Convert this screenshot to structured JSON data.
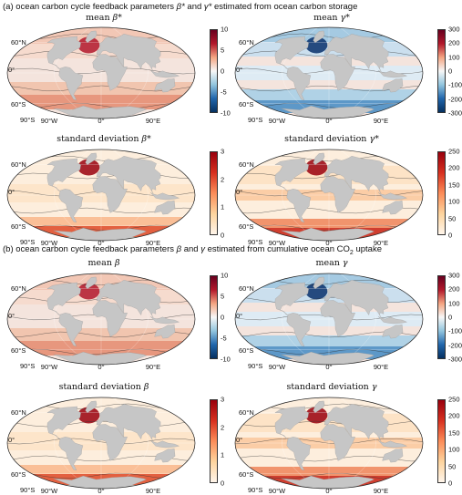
{
  "sections": {
    "a": {
      "title_prefix": "(a) ocean carbon cycle feedback parameters ",
      "beta": "β*",
      "and": " and ",
      "gamma": "γ*",
      "title_suffix": " estimated from ocean carbon storage"
    },
    "b": {
      "title_prefix": "(b) ocean carbon cycle feedback parameters ",
      "beta": "β",
      "and": " and ",
      "gamma": "γ",
      "title_suffix": " estimated from cumulative ocean CO",
      "sub": "2",
      "title_end": " uptake"
    }
  },
  "panels": [
    {
      "id": "a1",
      "title_text": "mean ",
      "symbol": "β*",
      "colormap": "diverging",
      "ticks": [
        "10",
        "5",
        "0",
        "-5",
        "-10"
      ]
    },
    {
      "id": "a2",
      "title_text": "mean ",
      "symbol": "γ*",
      "colormap": "diverging",
      "ticks": [
        "300",
        "200",
        "100",
        "0",
        "-100",
        "-200",
        "-300"
      ]
    },
    {
      "id": "a3",
      "title_text": "standard deviation ",
      "symbol": "β*",
      "colormap": "sequential",
      "ticks": [
        "3",
        "2",
        "1",
        "0"
      ]
    },
    {
      "id": "a4",
      "title_text": "standard deviation ",
      "symbol": "γ*",
      "colormap": "sequential",
      "ticks": [
        "250",
        "200",
        "150",
        "100",
        "50",
        "0"
      ]
    },
    {
      "id": "b1",
      "title_text": "mean ",
      "symbol": "β",
      "colormap": "diverging",
      "ticks": [
        "10",
        "5",
        "0",
        "-5",
        "-10"
      ]
    },
    {
      "id": "b2",
      "title_text": "mean ",
      "symbol": "γ",
      "colormap": "diverging",
      "ticks": [
        "300",
        "200",
        "100",
        "0",
        "-100",
        "-200",
        "-300"
      ]
    },
    {
      "id": "b3",
      "title_text": "standard deviation ",
      "symbol": "β",
      "colormap": "sequential",
      "ticks": [
        "3",
        "2",
        "1",
        "0"
      ]
    },
    {
      "id": "b4",
      "title_text": "standard deviation ",
      "symbol": "γ",
      "colormap": "sequential",
      "ticks": [
        "250",
        "200",
        "150",
        "100",
        "50",
        "0"
      ]
    }
  ],
  "axis_labels": {
    "lat_60n": "60°N",
    "lat_0": "0°",
    "lat_60s": "60°S",
    "lat_90s": "90°S",
    "lon_90w": "90°W",
    "lon_0": "0°",
    "lon_90e": "90°E"
  },
  "colors": {
    "land": "#c6c6c6",
    "diverging_pos": "#b2182b",
    "diverging_neg": "#2166ac",
    "sequential_high": "#99000d",
    "sequential_low": "#fff5eb"
  }
}
